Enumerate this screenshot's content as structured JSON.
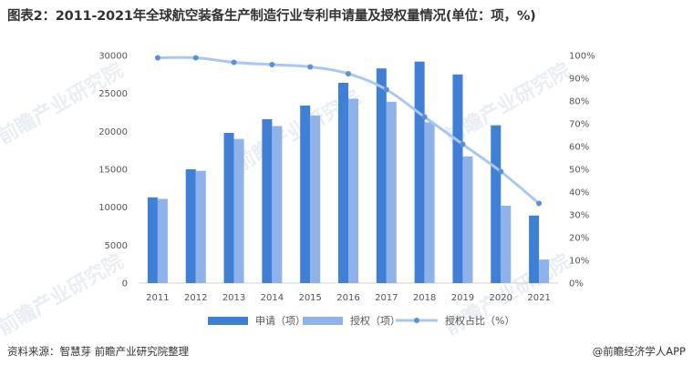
{
  "title": "图表2：2011-2021年全球航空装备生产制造行业专利申请量及授权量情况(单位：项，%)",
  "footer": {
    "source": "资料来源：智慧芽 前瞻产业研究院整理",
    "brand": "@前瞻经济学人APP"
  },
  "watermark": "前瞻产业研究院",
  "colors": {
    "applications": "#3f7fd6",
    "grants": "#8fb2ea",
    "ratio_line": "#a9c7f0",
    "ratio_marker": "#5b8fd9"
  },
  "chart_data": {
    "type": "bar",
    "categories": [
      "2011",
      "2012",
      "2013",
      "2014",
      "2015",
      "2016",
      "2017",
      "2018",
      "2019",
      "2020",
      "2021"
    ],
    "series": [
      {
        "name": "申请（项）",
        "type": "bar",
        "axis": "left",
        "values": [
          11300,
          15000,
          19800,
          21600,
          23400,
          26400,
          28300,
          29200,
          27500,
          20800,
          8900
        ]
      },
      {
        "name": "授权（项）",
        "type": "bar",
        "axis": "left",
        "values": [
          11100,
          14800,
          19000,
          20700,
          22100,
          24300,
          23900,
          21200,
          16700,
          10200,
          3100
        ]
      },
      {
        "name": "授权占比（%）",
        "type": "line",
        "axis": "right",
        "values": [
          99,
          99,
          97,
          96,
          95,
          92,
          85,
          73,
          61,
          49,
          35
        ]
      }
    ],
    "y_left": {
      "min": 0,
      "max": 30000,
      "ticks": [
        "0",
        "5000",
        "10000",
        "15000",
        "20000",
        "25000",
        "30000"
      ]
    },
    "y_right": {
      "min": 0,
      "max": 100,
      "ticks": [
        "0%",
        "10%",
        "20%",
        "30%",
        "40%",
        "50%",
        "60%",
        "70%",
        "80%",
        "90%",
        "100%"
      ]
    },
    "legend_position": "bottom",
    "grid": false
  }
}
